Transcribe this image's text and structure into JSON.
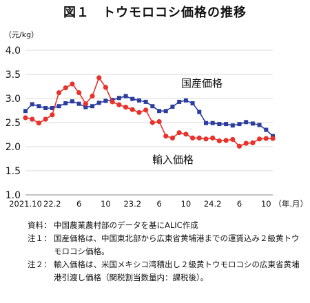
{
  "title": "図１　トウモロコシ価格の推移",
  "unit": "（元/kg）",
  "chart_data": {
    "type": "line",
    "ylim": [
      1.0,
      4.0
    ],
    "yticks": [
      "1.0",
      "1.5",
      "2.0",
      "2.5",
      "3.0",
      "3.5",
      "4.0"
    ],
    "x_tick_labels": [
      {
        "index": 0,
        "label": "2021.10"
      },
      {
        "index": 4,
        "label": "22.2"
      },
      {
        "index": 8,
        "label": "6"
      },
      {
        "index": 12,
        "label": "10"
      },
      {
        "index": 16,
        "label": "23.2"
      },
      {
        "index": 20,
        "label": "6"
      },
      {
        "index": 24,
        "label": "10"
      },
      {
        "index": 28,
        "label": "24.2"
      },
      {
        "index": 32,
        "label": "6"
      },
      {
        "index": 36,
        "label": "10"
      }
    ],
    "x_axis_suffix": "（年.月）",
    "grid": true,
    "series": [
      {
        "name": "国産価格",
        "color": "#2b3e9f",
        "marker": "square",
        "values": [
          2.74,
          2.88,
          2.84,
          2.8,
          2.8,
          2.84,
          2.9,
          2.94,
          2.89,
          2.82,
          2.84,
          2.91,
          2.95,
          2.97,
          3.01,
          3.05,
          2.99,
          2.96,
          2.93,
          2.84,
          2.74,
          2.74,
          2.83,
          2.93,
          2.96,
          2.9,
          2.72,
          2.49,
          2.49,
          2.47,
          2.47,
          2.44,
          2.47,
          2.51,
          2.48,
          2.45,
          2.35,
          2.22
        ]
      },
      {
        "name": "輸入価格",
        "color": "#e8322a",
        "marker": "circle",
        "values": [
          2.6,
          2.57,
          2.49,
          2.57,
          2.66,
          3.12,
          3.22,
          3.3,
          3.12,
          2.89,
          3.05,
          3.43,
          3.23,
          2.93,
          2.87,
          2.82,
          2.77,
          2.71,
          2.76,
          2.5,
          2.52,
          2.22,
          2.18,
          2.29,
          2.26,
          2.18,
          2.18,
          2.16,
          2.18,
          2.12,
          2.13,
          2.15,
          2.01,
          2.07,
          2.08,
          2.16,
          2.17,
          2.17
        ]
      }
    ]
  },
  "notes": [
    {
      "label": "資料：",
      "text": "中国農業農村部のデータを基にALIC作成"
    },
    {
      "label": "注１：",
      "text": "国産価格は、中国東北部から広東省黄埔港までの運賃込み２級黄トウモロコシ価格。"
    },
    {
      "label": "注２：",
      "text": "輸入価格は、米国メキシコ湾積出し２級黄トウモロコシの広東省黄埔港引渡し価格（関税割当数量内：課税後）。"
    }
  ]
}
